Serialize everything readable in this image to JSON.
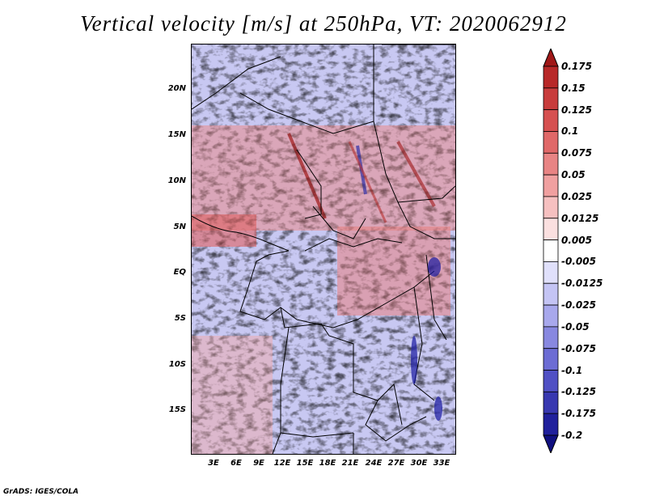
{
  "title": "Vertical velocity [m/s] at 250hPa, VT: 2020062912",
  "credit": "GrADS: IGES/COLA",
  "lat_labels": [
    "20N",
    "15N",
    "10N",
    "5N",
    "EQ",
    "5S",
    "10S",
    "15S"
  ],
  "lon_labels": [
    "3E",
    "6E",
    "9E",
    "12E",
    "15E",
    "18E",
    "21E",
    "24E",
    "27E",
    "30E",
    "33E"
  ],
  "colorbar": {
    "labels": [
      "0.175",
      "0.15",
      "0.125",
      "0.1",
      "0.075",
      "0.05",
      "0.025",
      "0.0125",
      "0.005",
      "-0.005",
      "-0.0125",
      "-0.025",
      "-0.05",
      "-0.075",
      "-0.1",
      "-0.125",
      "-0.175",
      "-0.2"
    ],
    "colors": [
      "#a01818",
      "#b82828",
      "#c83c3c",
      "#d65050",
      "#e06868",
      "#e88484",
      "#f0a0a0",
      "#f6c0c0",
      "#fbe0e0",
      "#ffffff",
      "#e0e0fb",
      "#c4c4f4",
      "#a8a8ec",
      "#8888e0",
      "#6c6cd4",
      "#5050c4",
      "#3838b0",
      "#20209c",
      "#101080"
    ]
  }
}
